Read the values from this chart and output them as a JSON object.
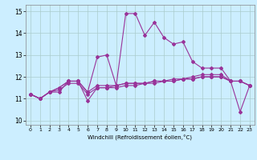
{
  "xlabel": "Windchill (Refroidissement éolien,°C)",
  "ylabel": "",
  "background_color": "#cceeff",
  "grid_color": "#aacccc",
  "line_color": "#993399",
  "xlim": [
    -0.5,
    23.5
  ],
  "ylim": [
    9.8,
    15.3
  ],
  "xticks": [
    0,
    1,
    2,
    3,
    4,
    5,
    6,
    7,
    8,
    9,
    10,
    11,
    12,
    13,
    14,
    15,
    16,
    17,
    18,
    19,
    20,
    21,
    22,
    23
  ],
  "yticks": [
    10,
    11,
    12,
    13,
    14,
    15
  ],
  "series": [
    [
      11.2,
      11.0,
      11.3,
      11.3,
      11.8,
      11.8,
      11.3,
      12.9,
      13.0,
      11.6,
      14.9,
      14.9,
      13.9,
      14.5,
      13.8,
      13.5,
      13.6,
      12.7,
      12.4,
      12.4,
      12.4,
      11.8,
      11.8,
      11.6
    ],
    [
      11.2,
      11.0,
      11.3,
      11.5,
      11.8,
      11.8,
      11.3,
      11.6,
      11.6,
      11.6,
      11.7,
      11.7,
      11.7,
      11.8,
      11.8,
      11.8,
      11.9,
      11.9,
      12.0,
      12.0,
      12.0,
      11.8,
      11.8,
      11.6
    ],
    [
      11.2,
      11.0,
      11.3,
      11.4,
      11.7,
      11.7,
      11.2,
      11.5,
      11.5,
      11.5,
      11.6,
      11.6,
      11.7,
      11.7,
      11.8,
      11.8,
      11.9,
      11.9,
      12.0,
      12.0,
      12.0,
      11.8,
      11.8,
      11.6
    ],
    [
      11.2,
      11.0,
      11.3,
      11.5,
      11.8,
      11.8,
      10.9,
      11.5,
      11.5,
      11.6,
      11.7,
      11.7,
      11.7,
      11.8,
      11.8,
      11.9,
      11.9,
      12.0,
      12.1,
      12.1,
      12.1,
      11.8,
      10.4,
      11.6
    ]
  ]
}
